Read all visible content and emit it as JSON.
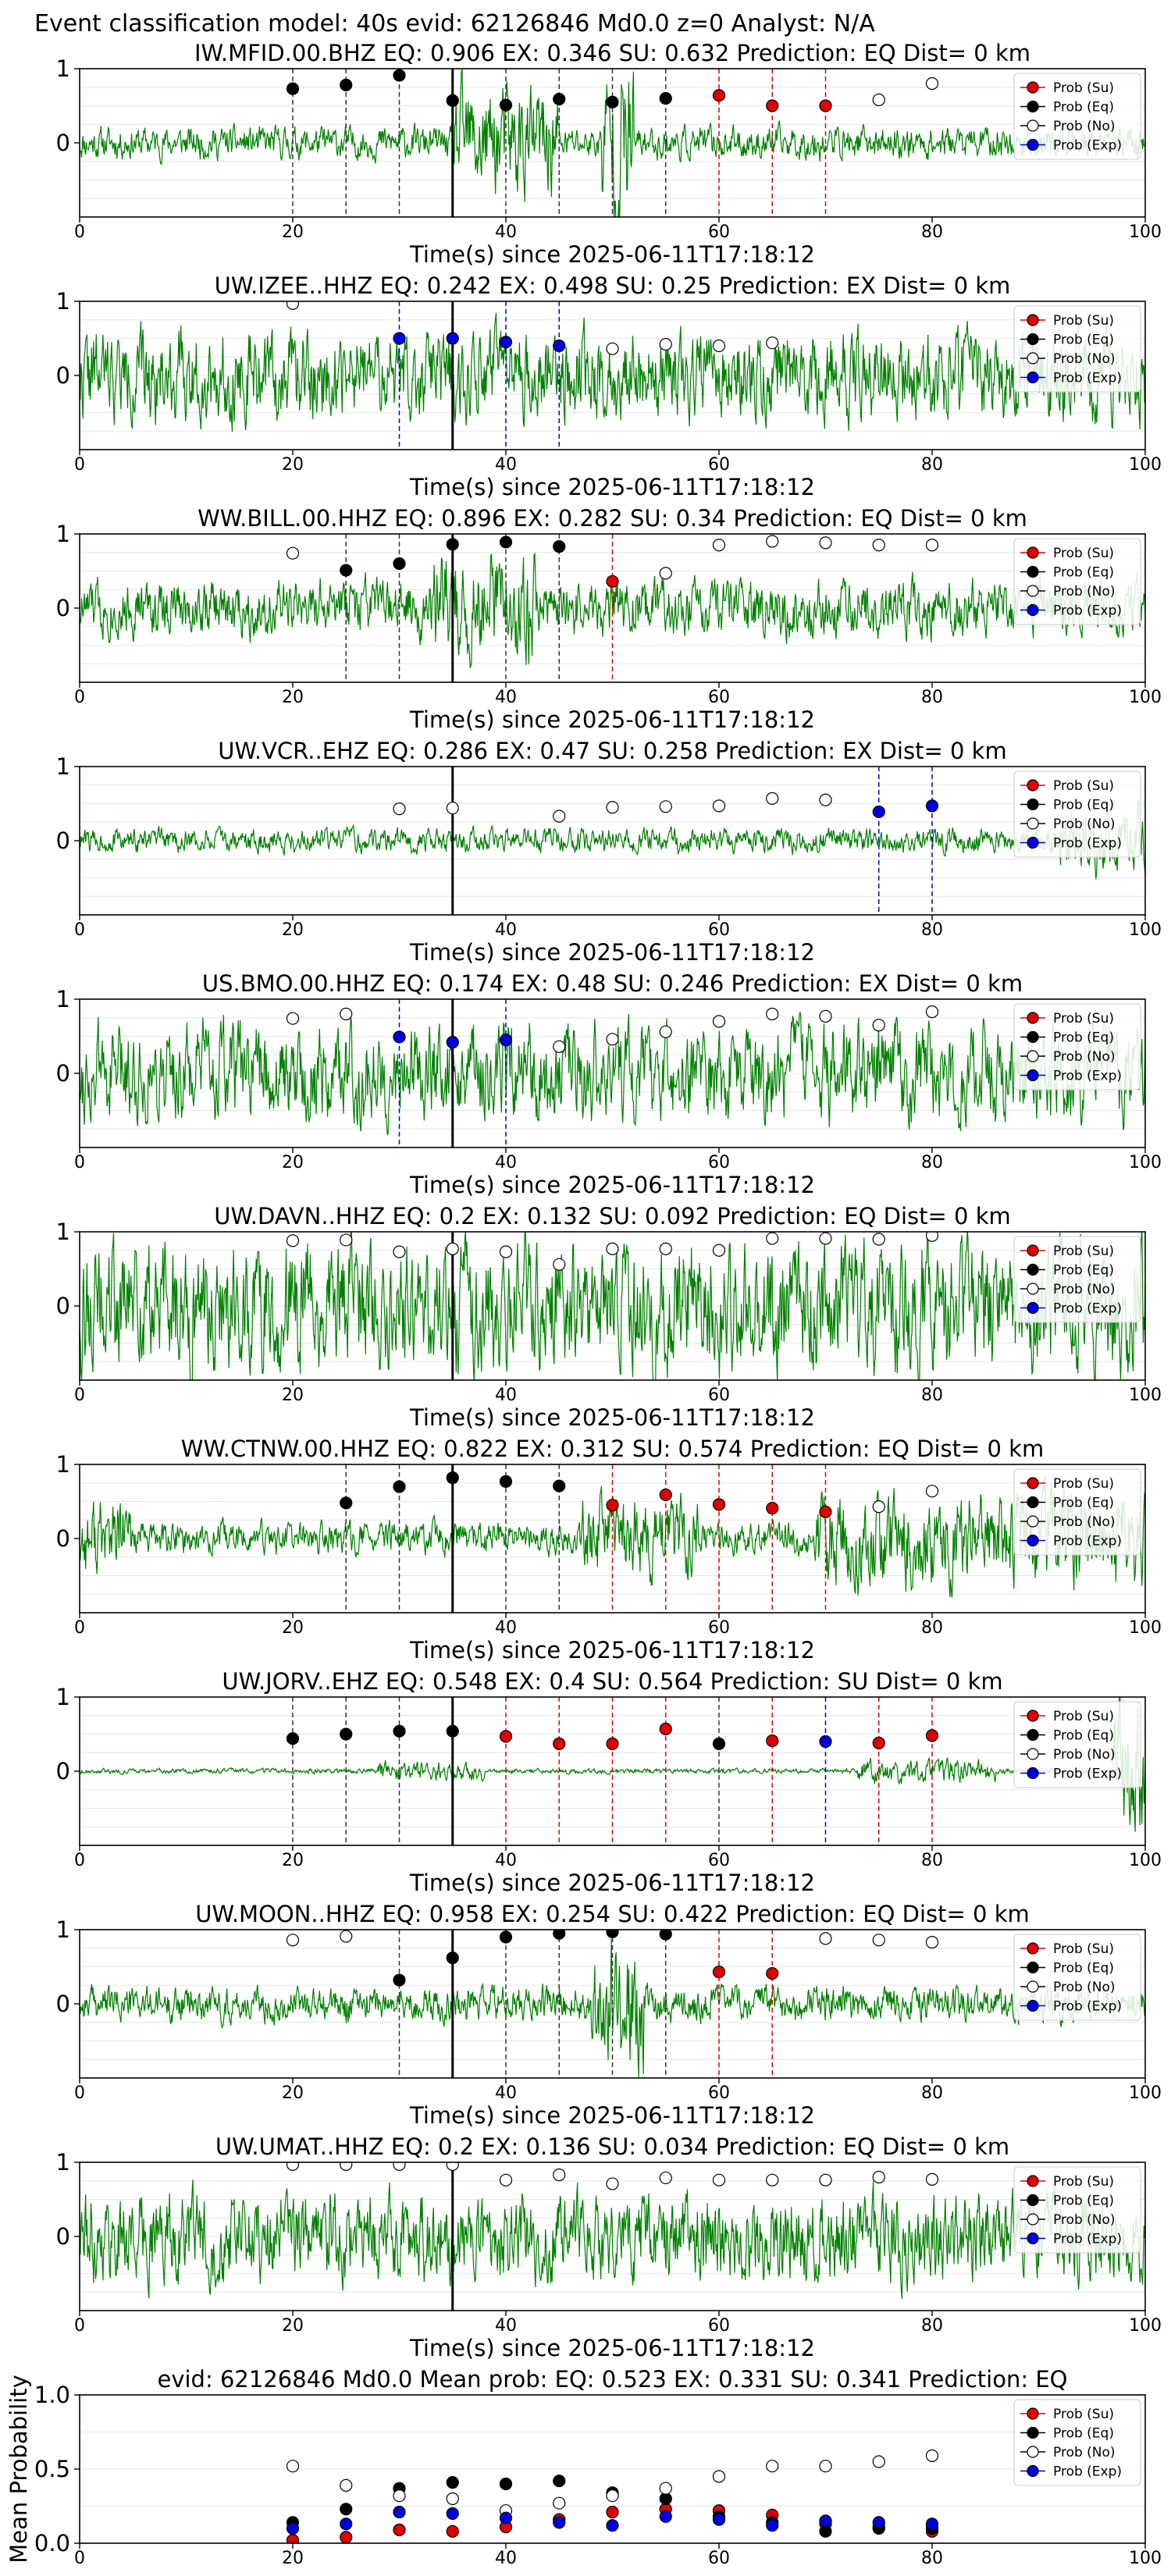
{
  "figure": {
    "suptitle": "Event classification model: 40s evid: 62126846 Md0.0 z=0 Analyst: N/A",
    "xlabel": "Time(s) since 2025-06-11T17:18:12",
    "mean_ylabel": "Mean Probability"
  },
  "legend": [
    "Prob (Su)",
    "Prob (Eq)",
    "Prob (No)",
    "Prob (Exp)"
  ],
  "colors": {
    "su": "#e00000",
    "eq": "#000000",
    "no": "#ffffff",
    "exp": "#0000dd",
    "waveform": "#008000"
  },
  "chart_data": [
    {
      "type": "scatter",
      "title": "IW.MFID.00.BHZ   EQ: 0.906   EX: 0.346   SU: 0.632   Prediction: EQ    Dist= 0 km",
      "xlim": [
        0,
        100
      ],
      "ylim": [
        -1,
        1
      ],
      "xticks": [
        0,
        20,
        40,
        60,
        80,
        100
      ],
      "yticks": [
        0,
        1
      ],
      "marker_x": 35,
      "waveform": {
        "amp": 0.2,
        "seed": 11,
        "bursts": [
          [
            35,
            45,
            0.7
          ],
          [
            49,
            52,
            1.0
          ]
        ]
      },
      "points": [
        {
          "x": 20,
          "y": 0.73,
          "c": "eq"
        },
        {
          "x": 25,
          "y": 0.78,
          "c": "eq"
        },
        {
          "x": 30,
          "y": 0.91,
          "c": "eq"
        },
        {
          "x": 35,
          "y": 0.57,
          "c": "eq"
        },
        {
          "x": 40,
          "y": 0.51,
          "c": "eq"
        },
        {
          "x": 45,
          "y": 0.59,
          "c": "eq"
        },
        {
          "x": 50,
          "y": 0.55,
          "c": "eq"
        },
        {
          "x": 55,
          "y": 0.6,
          "c": "eq"
        },
        {
          "x": 60,
          "y": 0.64,
          "c": "su"
        },
        {
          "x": 65,
          "y": 0.5,
          "c": "su"
        },
        {
          "x": 70,
          "y": 0.5,
          "c": "su"
        },
        {
          "x": 75,
          "y": 0.58,
          "c": "no"
        },
        {
          "x": 80,
          "y": 0.8,
          "c": "no"
        }
      ]
    },
    {
      "type": "scatter",
      "title": "UW.IZEE..HHZ   EQ: 0.242   EX: 0.498   SU: 0.25   Prediction: EX    Dist= 0 km",
      "xlim": [
        0,
        100
      ],
      "ylim": [
        -1,
        1
      ],
      "xticks": [
        0,
        20,
        40,
        60,
        80,
        100
      ],
      "yticks": [
        0,
        1
      ],
      "marker_x": 35,
      "waveform": {
        "amp": 0.55,
        "seed": 22,
        "bursts": []
      },
      "points": [
        {
          "x": 20,
          "y": 0.97,
          "c": "no"
        },
        {
          "x": 30,
          "y": 0.5,
          "c": "exp"
        },
        {
          "x": 35,
          "y": 0.5,
          "c": "exp"
        },
        {
          "x": 40,
          "y": 0.45,
          "c": "exp"
        },
        {
          "x": 45,
          "y": 0.4,
          "c": "exp"
        },
        {
          "x": 50,
          "y": 0.36,
          "c": "no"
        },
        {
          "x": 55,
          "y": 0.42,
          "c": "no"
        },
        {
          "x": 60,
          "y": 0.4,
          "c": "no"
        },
        {
          "x": 65,
          "y": 0.44,
          "c": "no"
        }
      ]
    },
    {
      "type": "scatter",
      "title": "WW.BILL.00.HHZ   EQ: 0.896   EX: 0.282   SU: 0.34   Prediction: EQ    Dist= 0 km",
      "xlim": [
        0,
        100
      ],
      "ylim": [
        -1,
        1
      ],
      "xticks": [
        0,
        20,
        40,
        60,
        80,
        100
      ],
      "yticks": [
        0,
        1
      ],
      "marker_x": 35,
      "waveform": {
        "amp": 0.35,
        "seed": 33,
        "bursts": [
          [
            33,
            43,
            0.7
          ]
        ]
      },
      "points": [
        {
          "x": 20,
          "y": 0.74,
          "c": "no"
        },
        {
          "x": 25,
          "y": 0.51,
          "c": "eq"
        },
        {
          "x": 30,
          "y": 0.6,
          "c": "eq"
        },
        {
          "x": 35,
          "y": 0.86,
          "c": "eq"
        },
        {
          "x": 40,
          "y": 0.89,
          "c": "eq"
        },
        {
          "x": 45,
          "y": 0.83,
          "c": "eq"
        },
        {
          "x": 50,
          "y": 0.36,
          "c": "su"
        },
        {
          "x": 55,
          "y": 0.47,
          "c": "no"
        },
        {
          "x": 60,
          "y": 0.85,
          "c": "no"
        },
        {
          "x": 65,
          "y": 0.9,
          "c": "no"
        },
        {
          "x": 70,
          "y": 0.88,
          "c": "no"
        },
        {
          "x": 75,
          "y": 0.85,
          "c": "no"
        },
        {
          "x": 80,
          "y": 0.85,
          "c": "no"
        }
      ]
    },
    {
      "type": "scatter",
      "title": "UW.VCR..EHZ   EQ: 0.286   EX: 0.47   SU: 0.258   Prediction: EX    Dist= 0 km",
      "xlim": [
        0,
        100
      ],
      "ylim": [
        -1,
        1
      ],
      "xticks": [
        0,
        20,
        40,
        60,
        80,
        100
      ],
      "yticks": [
        0,
        1
      ],
      "marker_x": 35,
      "waveform": {
        "amp": 0.15,
        "seed": 44,
        "bursts": [
          [
            92,
            100,
            0.4
          ]
        ]
      },
      "points": [
        {
          "x": 30,
          "y": 0.43,
          "c": "no"
        },
        {
          "x": 35,
          "y": 0.44,
          "c": "no"
        },
        {
          "x": 45,
          "y": 0.33,
          "c": "no"
        },
        {
          "x": 50,
          "y": 0.45,
          "c": "no"
        },
        {
          "x": 55,
          "y": 0.46,
          "c": "no"
        },
        {
          "x": 60,
          "y": 0.47,
          "c": "no"
        },
        {
          "x": 65,
          "y": 0.57,
          "c": "no"
        },
        {
          "x": 70,
          "y": 0.55,
          "c": "no"
        },
        {
          "x": 75,
          "y": 0.39,
          "c": "exp"
        },
        {
          "x": 80,
          "y": 0.47,
          "c": "exp"
        }
      ]
    },
    {
      "type": "scatter",
      "title": "US.BMO.00.HHZ   EQ: 0.174   EX: 0.48   SU: 0.246   Prediction: EX    Dist= 0 km",
      "xlim": [
        0,
        100
      ],
      "ylim": [
        -1,
        1
      ],
      "xticks": [
        0,
        20,
        40,
        60,
        80,
        100
      ],
      "yticks": [
        0,
        1
      ],
      "marker_x": 35,
      "waveform": {
        "amp": 0.6,
        "seed": 55,
        "bursts": []
      },
      "points": [
        {
          "x": 20,
          "y": 0.74,
          "c": "no"
        },
        {
          "x": 25,
          "y": 0.8,
          "c": "no"
        },
        {
          "x": 30,
          "y": 0.49,
          "c": "exp"
        },
        {
          "x": 35,
          "y": 0.42,
          "c": "exp"
        },
        {
          "x": 40,
          "y": 0.45,
          "c": "exp"
        },
        {
          "x": 45,
          "y": 0.36,
          "c": "no"
        },
        {
          "x": 50,
          "y": 0.46,
          "c": "no"
        },
        {
          "x": 55,
          "y": 0.56,
          "c": "no"
        },
        {
          "x": 60,
          "y": 0.7,
          "c": "no"
        },
        {
          "x": 65,
          "y": 0.8,
          "c": "no"
        },
        {
          "x": 70,
          "y": 0.77,
          "c": "no"
        },
        {
          "x": 75,
          "y": 0.65,
          "c": "no"
        },
        {
          "x": 80,
          "y": 0.83,
          "c": "no"
        }
      ]
    },
    {
      "type": "scatter",
      "title": "UW.DAVN..HHZ   EQ: 0.2   EX: 0.132   SU: 0.092   Prediction: EQ    Dist= 0 km",
      "xlim": [
        0,
        100
      ],
      "ylim": [
        -1,
        1
      ],
      "xticks": [
        0,
        20,
        40,
        60,
        80,
        100
      ],
      "yticks": [
        0,
        1
      ],
      "marker_x": 35,
      "waveform": {
        "amp": 0.8,
        "seed": 66,
        "bursts": []
      },
      "points": [
        {
          "x": 20,
          "y": 0.88,
          "c": "no"
        },
        {
          "x": 25,
          "y": 0.89,
          "c": "no"
        },
        {
          "x": 30,
          "y": 0.73,
          "c": "no"
        },
        {
          "x": 35,
          "y": 0.77,
          "c": "no"
        },
        {
          "x": 40,
          "y": 0.73,
          "c": "no"
        },
        {
          "x": 45,
          "y": 0.56,
          "c": "no"
        },
        {
          "x": 50,
          "y": 0.77,
          "c": "no"
        },
        {
          "x": 55,
          "y": 0.77,
          "c": "no"
        },
        {
          "x": 60,
          "y": 0.75,
          "c": "no"
        },
        {
          "x": 65,
          "y": 0.91,
          "c": "no"
        },
        {
          "x": 70,
          "y": 0.91,
          "c": "no"
        },
        {
          "x": 75,
          "y": 0.9,
          "c": "no"
        },
        {
          "x": 80,
          "y": 0.95,
          "c": "no"
        }
      ]
    },
    {
      "type": "scatter",
      "title": "WW.CTNW.00.HHZ   EQ: 0.822   EX: 0.312   SU: 0.574   Prediction: EQ    Dist= 0 km",
      "xlim": [
        0,
        100
      ],
      "ylim": [
        -1,
        1
      ],
      "xticks": [
        0,
        20,
        40,
        60,
        80,
        100
      ],
      "yticks": [
        0,
        1
      ],
      "marker_x": 35,
      "waveform": {
        "amp": 0.2,
        "seed": 77,
        "bursts": [
          [
            0,
            5,
            0.5
          ],
          [
            47,
            58,
            0.5
          ],
          [
            69,
            100,
            0.6
          ]
        ]
      },
      "points": [
        {
          "x": 25,
          "y": 0.48,
          "c": "eq"
        },
        {
          "x": 30,
          "y": 0.7,
          "c": "eq"
        },
        {
          "x": 35,
          "y": 0.82,
          "c": "eq"
        },
        {
          "x": 40,
          "y": 0.77,
          "c": "eq"
        },
        {
          "x": 45,
          "y": 0.71,
          "c": "eq"
        },
        {
          "x": 50,
          "y": 0.45,
          "c": "su"
        },
        {
          "x": 55,
          "y": 0.59,
          "c": "su"
        },
        {
          "x": 60,
          "y": 0.46,
          "c": "su"
        },
        {
          "x": 65,
          "y": 0.41,
          "c": "su"
        },
        {
          "x": 70,
          "y": 0.36,
          "c": "su"
        },
        {
          "x": 75,
          "y": 0.43,
          "c": "no"
        },
        {
          "x": 80,
          "y": 0.64,
          "c": "no"
        }
      ]
    },
    {
      "type": "scatter",
      "title": "UW.JORV..EHZ   EQ: 0.548   EX: 0.4   SU: 0.564   Prediction: SU    Dist= 0 km",
      "xlim": [
        0,
        100
      ],
      "ylim": [
        -1,
        1
      ],
      "xticks": [
        0,
        20,
        40,
        60,
        80,
        100
      ],
      "yticks": [
        0,
        1
      ],
      "marker_x": 35,
      "waveform": {
        "amp": 0.03,
        "seed": 88,
        "bursts": [
          [
            28,
            38,
            0.12
          ],
          [
            73,
            86,
            0.15
          ],
          [
            97,
            100,
            0.9
          ]
        ]
      },
      "points": [
        {
          "x": 20,
          "y": 0.44,
          "c": "eq"
        },
        {
          "x": 25,
          "y": 0.5,
          "c": "eq"
        },
        {
          "x": 30,
          "y": 0.54,
          "c": "eq"
        },
        {
          "x": 35,
          "y": 0.54,
          "c": "eq"
        },
        {
          "x": 40,
          "y": 0.47,
          "c": "su"
        },
        {
          "x": 45,
          "y": 0.37,
          "c": "su"
        },
        {
          "x": 50,
          "y": 0.37,
          "c": "su"
        },
        {
          "x": 55,
          "y": 0.57,
          "c": "su"
        },
        {
          "x": 60,
          "y": 0.37,
          "c": "eq"
        },
        {
          "x": 65,
          "y": 0.41,
          "c": "su"
        },
        {
          "x": 70,
          "y": 0.4,
          "c": "exp"
        },
        {
          "x": 75,
          "y": 0.38,
          "c": "su"
        },
        {
          "x": 80,
          "y": 0.48,
          "c": "su"
        }
      ]
    },
    {
      "type": "scatter",
      "title": "UW.MOON..HHZ   EQ: 0.958   EX: 0.254   SU: 0.422   Prediction: EQ    Dist= 0 km",
      "xlim": [
        0,
        100
      ],
      "ylim": [
        -1,
        1
      ],
      "xticks": [
        0,
        20,
        40,
        60,
        80,
        100
      ],
      "yticks": [
        0,
        1
      ],
      "marker_x": 35,
      "waveform": {
        "amp": 0.22,
        "seed": 99,
        "bursts": [
          [
            48,
            53,
            0.8
          ]
        ]
      },
      "points": [
        {
          "x": 20,
          "y": 0.86,
          "c": "no"
        },
        {
          "x": 25,
          "y": 0.91,
          "c": "no"
        },
        {
          "x": 30,
          "y": 0.32,
          "c": "eq"
        },
        {
          "x": 35,
          "y": 0.62,
          "c": "eq"
        },
        {
          "x": 40,
          "y": 0.9,
          "c": "eq"
        },
        {
          "x": 45,
          "y": 0.95,
          "c": "eq"
        },
        {
          "x": 50,
          "y": 0.97,
          "c": "eq"
        },
        {
          "x": 55,
          "y": 0.94,
          "c": "eq"
        },
        {
          "x": 60,
          "y": 0.43,
          "c": "su"
        },
        {
          "x": 65,
          "y": 0.41,
          "c": "su"
        },
        {
          "x": 70,
          "y": 0.88,
          "c": "no"
        },
        {
          "x": 75,
          "y": 0.86,
          "c": "no"
        },
        {
          "x": 80,
          "y": 0.83,
          "c": "no"
        }
      ]
    },
    {
      "type": "scatter",
      "title": "UW.UMAT..HHZ   EQ: 0.2   EX: 0.136   SU: 0.034   Prediction: EQ    Dist= 0 km",
      "xlim": [
        0,
        100
      ],
      "ylim": [
        -1,
        1
      ],
      "xticks": [
        0,
        20,
        40,
        60,
        80,
        100
      ],
      "yticks": [
        0,
        1
      ],
      "marker_x": 35,
      "waveform": {
        "amp": 0.55,
        "seed": 111,
        "bursts": []
      },
      "points": [
        {
          "x": 20,
          "y": 0.97,
          "c": "no"
        },
        {
          "x": 25,
          "y": 0.97,
          "c": "no"
        },
        {
          "x": 30,
          "y": 0.97,
          "c": "no"
        },
        {
          "x": 35,
          "y": 0.97,
          "c": "no"
        },
        {
          "x": 40,
          "y": 0.76,
          "c": "no"
        },
        {
          "x": 45,
          "y": 0.83,
          "c": "no"
        },
        {
          "x": 50,
          "y": 0.71,
          "c": "no"
        },
        {
          "x": 55,
          "y": 0.79,
          "c": "no"
        },
        {
          "x": 60,
          "y": 0.76,
          "c": "no"
        },
        {
          "x": 65,
          "y": 0.76,
          "c": "no"
        },
        {
          "x": 70,
          "y": 0.76,
          "c": "no"
        },
        {
          "x": 75,
          "y": 0.8,
          "c": "no"
        },
        {
          "x": 80,
          "y": 0.77,
          "c": "no"
        }
      ]
    },
    {
      "type": "scatter",
      "title": "evid: 62126846  Md0.0   Mean prob:   EQ: 0.523  EX: 0.331  SU: 0.341   Prediction: EQ",
      "xlim": [
        0,
        100
      ],
      "ylim": [
        0,
        1
      ],
      "xticks": [
        0,
        20,
        40,
        60,
        80,
        100
      ],
      "yticks": [
        0.0,
        0.5,
        1.0
      ],
      "ylabel": "Mean Probability",
      "series": [
        {
          "name": "Prob (Su)",
          "c": "su",
          "x": [
            20,
            25,
            30,
            35,
            40,
            45,
            50,
            55,
            60,
            65,
            70,
            75,
            80
          ],
          "y": [
            0.02,
            0.04,
            0.09,
            0.08,
            0.11,
            0.16,
            0.21,
            0.23,
            0.22,
            0.19,
            0.13,
            0.11,
            0.08
          ]
        },
        {
          "name": "Prob (Eq)",
          "c": "eq",
          "x": [
            20,
            25,
            30,
            35,
            40,
            45,
            50,
            55,
            60,
            65,
            70,
            75,
            80
          ],
          "y": [
            0.14,
            0.23,
            0.37,
            0.41,
            0.4,
            0.42,
            0.34,
            0.3,
            0.18,
            0.14,
            0.08,
            0.1,
            0.1
          ]
        },
        {
          "name": "Prob (No)",
          "c": "no",
          "x": [
            20,
            25,
            30,
            35,
            40,
            45,
            50,
            55,
            60,
            65,
            70,
            75,
            80
          ],
          "y": [
            0.52,
            0.39,
            0.32,
            0.3,
            0.22,
            0.27,
            0.32,
            0.37,
            0.45,
            0.52,
            0.52,
            0.55,
            0.59
          ]
        },
        {
          "name": "Prob (Exp)",
          "c": "exp",
          "x": [
            20,
            25,
            30,
            35,
            40,
            45,
            50,
            55,
            60,
            65,
            70,
            75,
            80
          ],
          "y": [
            0.1,
            0.13,
            0.21,
            0.2,
            0.17,
            0.14,
            0.12,
            0.18,
            0.16,
            0.12,
            0.15,
            0.14,
            0.13
          ]
        }
      ]
    }
  ]
}
